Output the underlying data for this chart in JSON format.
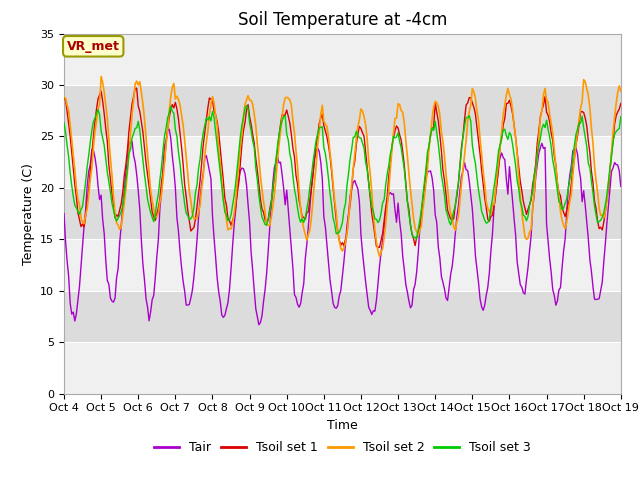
{
  "title": "Soil Temperature at -4cm",
  "xlabel": "Time",
  "ylabel": "Temperature (C)",
  "ylim": [
    0,
    35
  ],
  "yticks": [
    0,
    5,
    10,
    15,
    20,
    25,
    30,
    35
  ],
  "x_tick_positions": [
    0,
    24,
    48,
    72,
    96,
    120,
    144,
    168,
    192,
    216,
    240,
    264,
    288,
    312,
    336,
    360
  ],
  "x_tick_labels": [
    "Oct 4",
    "Oct 5",
    "Oct 6",
    "Oct 7",
    "Oct 8",
    "Oct 9",
    "Oct 10",
    "Oct 11",
    "Oct 12",
    "Oct 13",
    "Oct 14",
    "Oct 15",
    "Oct 16",
    "Oct 17",
    "Oct 18",
    "Oct 19"
  ],
  "colors": {
    "Tair": "#aa00cc",
    "Tsoil1": "#dd0000",
    "Tsoil2": "#ff9900",
    "Tsoil3": "#00cc00"
  },
  "legend_labels": [
    "Tair",
    "Tsoil set 1",
    "Tsoil set 2",
    "Tsoil set 3"
  ],
  "annotation_text": "VR_met",
  "background_color": "#ffffff",
  "plot_bg_color": "#f0f0f0",
  "band_color": "#dcdcdc",
  "title_fontsize": 12,
  "label_fontsize": 9,
  "tick_fontsize": 8
}
